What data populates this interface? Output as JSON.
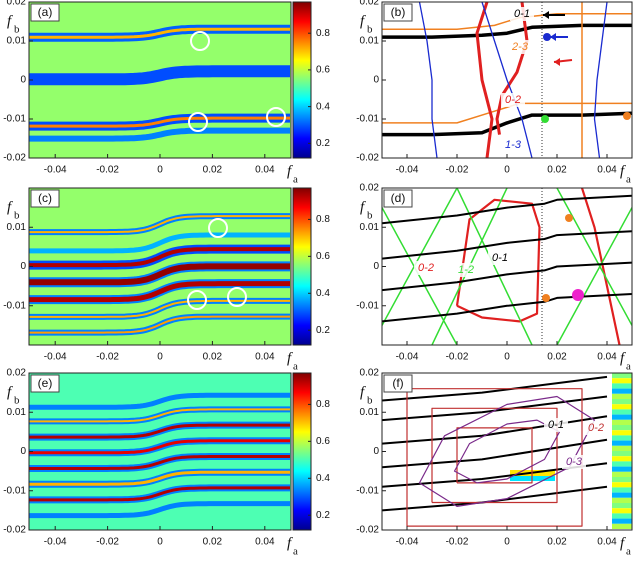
{
  "chart_data": [
    {
      "type": "heatmap",
      "label": "(a)",
      "xlabel": "f",
      "xlabel_sub": "a",
      "ylabel": "f",
      "ylabel_sub": "b",
      "xlim": [
        -0.05,
        0.05
      ],
      "ylim": [
        -0.02,
        0.02
      ],
      "xticks": [
        -0.04,
        -0.02,
        0,
        0.02,
        0.04
      ],
      "yticks": [
        -0.02,
        -0.01,
        0,
        0.01,
        0.02
      ],
      "colorbar_lim": [
        0.12,
        0.97
      ],
      "colorbar_ticks": [
        0.2,
        0.4,
        0.6,
        0.8
      ]
    },
    {
      "type": "line",
      "label": "(b)",
      "xlabel": "f",
      "xlabel_sub": "a",
      "ylabel": "f",
      "ylabel_sub": "b",
      "xlim": [
        -0.05,
        0.05
      ],
      "ylim": [
        -0.02,
        0.02
      ],
      "xticks": [
        -0.04,
        -0.02,
        0,
        0.02,
        0.04
      ],
      "yticks": [
        -0.02,
        -0.01,
        0,
        0.01,
        0.02
      ],
      "series": [
        {
          "name": "0-1",
          "color": "#000000",
          "width": 3.5,
          "x": [
            -0.05,
            -0.03,
            -0.01,
            0,
            0.01,
            0.03,
            0.05,
            null,
            -0.05,
            -0.03,
            -0.01,
            0,
            0.01,
            0.03,
            0.05
          ],
          "y": [
            0.011,
            0.011,
            0.0115,
            0.012,
            0.0135,
            0.014,
            0.014,
            null,
            -0.014,
            -0.014,
            -0.0135,
            -0.011,
            -0.009,
            -0.009,
            -0.0085
          ]
        },
        {
          "name": "2-3",
          "color": "#f08020",
          "width": 1.5,
          "x": [
            -0.05,
            -0.02,
            -0.005,
            0.005,
            0.02,
            0.05,
            null,
            -0.05,
            -0.02,
            -0.005,
            0.005,
            0.02,
            0.05,
            null,
            0.03,
            0.03
          ],
          "y": [
            0.013,
            0.013,
            0.014,
            0.016,
            0.017,
            0.017,
            null,
            -0.011,
            -0.011,
            -0.008,
            -0.006,
            -0.006,
            -0.006,
            null,
            0.02,
            -0.02
          ]
        },
        {
          "name": "0-2",
          "color": "#e02020",
          "width": 3,
          "x": [
            0.006,
            0.008,
            0.004,
            -0.002,
            -0.004,
            -0.003,
            null,
            -0.008,
            -0.012,
            -0.01,
            -0.006,
            -0.008
          ],
          "y": [
            0.02,
            0.01,
            0.002,
            -0.004,
            -0.01,
            -0.014,
            null,
            0.02,
            0.012,
            0.0,
            -0.01,
            -0.02
          ]
        },
        {
          "name": "1-3",
          "color": "#1a2bd0",
          "width": 1.3,
          "x": [
            -0.035,
            -0.032,
            -0.03,
            -0.03,
            -0.028,
            null,
            0.04,
            0.038,
            0.036,
            0.035,
            0.037,
            null,
            -0.01,
            -0.005,
            0,
            0.006,
            0.01
          ],
          "y": [
            0.02,
            0.01,
            0.0,
            -0.01,
            -0.02,
            null,
            0.02,
            0.01,
            0.0,
            -0.01,
            -0.02,
            null,
            0.02,
            0.01,
            0.0,
            -0.01,
            -0.02
          ]
        }
      ]
    },
    {
      "type": "heatmap",
      "label": "(c)",
      "xlabel": "f",
      "xlabel_sub": "a",
      "ylabel": "f",
      "ylabel_sub": "b",
      "xlim": [
        -0.05,
        0.05
      ],
      "ylim": [
        -0.02,
        0.02
      ],
      "xticks": [
        -0.04,
        -0.02,
        0,
        0.02,
        0.04
      ],
      "yticks": [
        -0.01,
        0,
        0.01
      ],
      "colorbar_lim": [
        0.12,
        0.97
      ],
      "colorbar_ticks": [
        0.2,
        0.4,
        0.6,
        0.8
      ]
    },
    {
      "type": "line",
      "label": "(d)",
      "xlabel": "f",
      "xlabel_sub": "a",
      "ylabel": "f",
      "ylabel_sub": "b",
      "xlim": [
        -0.05,
        0.05
      ],
      "ylim": [
        -0.02,
        0.02
      ],
      "xticks": [
        -0.04,
        -0.02,
        0,
        0.02,
        0.04
      ],
      "yticks": [
        -0.01,
        0,
        0.01,
        0.02
      ],
      "series": [
        {
          "name": "0-2",
          "color": "#e02020",
          "width": 2.2,
          "x": [
            -0.02,
            -0.015,
            -0.005,
            0.01,
            0.013,
            0.012,
            0.005,
            -0.01,
            -0.02,
            null,
            0.03,
            0.035,
            0.04,
            0.045
          ],
          "y": [
            -0.01,
            0.012,
            0.017,
            0.016,
            0.01,
            -0.012,
            -0.014,
            -0.013,
            -0.01,
            null,
            0.02,
            0.01,
            -0.005,
            -0.02
          ]
        },
        {
          "name": "1-2",
          "color": "#33dd33",
          "width": 1.5,
          "x": [
            -0.05,
            -0.02,
            null,
            -0.03,
            0,
            null,
            -0.05,
            -0.02,
            null,
            -0.02,
            0.01,
            null,
            0.02,
            0.05,
            null,
            0.02,
            0.05
          ],
          "y": [
            -0.015,
            0.02,
            null,
            -0.02,
            0.02,
            null,
            0.015,
            -0.02,
            null,
            0.02,
            -0.02,
            null,
            0.02,
            -0.015,
            null,
            -0.02,
            0.015
          ]
        },
        {
          "name": "0-1",
          "color": "#000000",
          "width": 2,
          "x": [
            -0.05,
            -0.02,
            0,
            0.015,
            0.02,
            0.05,
            null,
            -0.05,
            -0.02,
            0,
            0.015,
            0.02,
            0.05,
            null,
            -0.05,
            -0.02,
            0,
            0.015,
            0.02,
            0.05,
            null,
            -0.05,
            -0.02,
            0,
            0.015,
            0.02,
            0.05
          ],
          "y": [
            0.011,
            0.013,
            0.015,
            0.016,
            0.017,
            0.018,
            null,
            0.002,
            0.004,
            0.006,
            0.007,
            0.008,
            0.009,
            null,
            -0.006,
            -0.004,
            -0.002,
            -0.001,
            0.0,
            0.001,
            null,
            -0.014,
            -0.012,
            -0.01,
            -0.009,
            -0.008,
            -0.007
          ]
        }
      ]
    },
    {
      "type": "heatmap",
      "label": "(e)",
      "xlabel": "f",
      "xlabel_sub": "a",
      "ylabel": "f",
      "ylabel_sub": "b",
      "xlim": [
        -0.05,
        0.05
      ],
      "ylim": [
        -0.02,
        0.02
      ],
      "xticks": [
        -0.04,
        -0.02,
        0,
        0.02,
        0.04
      ],
      "yticks": [
        -0.02,
        -0.01,
        0,
        0.01,
        0.02
      ],
      "colorbar_lim": [
        0.12,
        0.97
      ],
      "colorbar_ticks": [
        0.2,
        0.4,
        0.6,
        0.8
      ]
    },
    {
      "type": "line",
      "label": "(f)",
      "xlabel": "f",
      "xlabel_sub": "a",
      "ylabel": "f",
      "ylabel_sub": "b",
      "xlim": [
        -0.05,
        0.05
      ],
      "ylim": [
        -0.02,
        0.02
      ],
      "xticks": [
        -0.04,
        -0.02,
        0,
        0.02,
        0.04
      ],
      "yticks": [
        -0.02,
        -0.01,
        0,
        0.01,
        0.02
      ],
      "series": [
        {
          "name": "0-1",
          "color": "#000000",
          "width": 2,
          "x": [
            -0.05,
            -0.01,
            0.04,
            null,
            -0.05,
            -0.01,
            0.04,
            null,
            -0.05,
            -0.01,
            0.04,
            null,
            -0.05,
            -0.01,
            0.04,
            null,
            -0.05,
            -0.01,
            0.04,
            null,
            -0.05,
            -0.01,
            0.04
          ],
          "y": [
            0.013,
            0.015,
            0.019,
            null,
            0.008,
            0.01,
            0.014,
            null,
            0.002,
            0.004,
            0.009,
            null,
            -0.004,
            -0.002,
            0.003,
            null,
            -0.009,
            -0.007,
            -0.003,
            null,
            -0.015,
            -0.013,
            -0.009
          ]
        },
        {
          "name": "0-2",
          "color": "#c03030",
          "width": 1.2,
          "x": [
            -0.04,
            0.03,
            0.03,
            -0.04,
            -0.04,
            null,
            -0.03,
            0.02,
            0.02,
            -0.03,
            -0.03,
            null,
            -0.02,
            0.01,
            0.01,
            -0.02,
            -0.02
          ],
          "y": [
            -0.019,
            -0.019,
            0.016,
            0.016,
            -0.019,
            null,
            -0.013,
            -0.013,
            0.011,
            0.011,
            -0.013,
            null,
            -0.008,
            -0.008,
            0.006,
            0.006,
            -0.008
          ]
        },
        {
          "name": "0-3",
          "color": "#7a2a8a",
          "width": 1.2,
          "x": [
            0.035,
            0.02,
            0,
            -0.025,
            -0.035,
            -0.02,
            0,
            0.025,
            0.035,
            null,
            0.021,
            0.012,
            0,
            -0.015,
            -0.021,
            -0.012,
            0,
            0.015,
            0.021
          ],
          "y": [
            0.008,
            0.014,
            0.012,
            0.004,
            -0.008,
            -0.014,
            -0.012,
            -0.004,
            0.008,
            null,
            0.005,
            0.008,
            0.007,
            0.002,
            -0.005,
            -0.008,
            -0.007,
            -0.002,
            0.005
          ]
        }
      ]
    }
  ]
}
